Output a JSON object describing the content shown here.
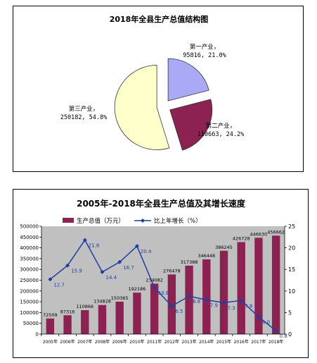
{
  "chart_data": [
    {
      "type": "pie",
      "title": "2018年全县生产总值结构图",
      "slices": [
        {
          "name": "第一产业",
          "value": 95816,
          "percent": "21.0%",
          "color": "#a9a9f5"
        },
        {
          "name": "第二产业",
          "value": 110663,
          "percent": "24.2%",
          "color": "#8b2252"
        },
        {
          "name": "第三产业",
          "value": 250182,
          "percent": "54.8%",
          "color": "#ffffcc"
        }
      ],
      "explode": true
    },
    {
      "type": "bar",
      "title": "2005年-2018年全县生产总值及其增长速度",
      "categories": [
        "2005年",
        "2006年",
        "2007年",
        "2008年",
        "2009年",
        "2010年",
        "2011年",
        "2012年",
        "2013年",
        "2014年",
        "2015年",
        "2016年",
        "2017年",
        "2018年"
      ],
      "series": [
        {
          "name": "生产总值（万元）",
          "kind": "bar",
          "axis": "left",
          "color": "#8b2252",
          "values": [
            72509,
            87316,
            110866,
            134828,
            150365,
            192186,
            234082,
            276478,
            317388,
            346448,
            386245,
            426728,
            446630,
            456662
          ]
        },
        {
          "name": "比上年增长（%）",
          "kind": "line",
          "axis": "right",
          "color": "#1f3f9f",
          "values": [
            12.7,
            15.9,
            21.8,
            14.4,
            16.7,
            20.4,
            10.8,
            6.5,
            8.8,
            7.9,
            7.3,
            7.8,
            4.0,
            0.8
          ],
          "labels": [
            "12.7",
            "15.9",
            "21.8",
            "14.4",
            "16.7",
            "20.4",
            "10.8",
            "6.5",
            "8.8",
            "7.9",
            "7.3",
            "7.8",
            "4.0",
            "0.8"
          ]
        }
      ],
      "ylim": [
        0,
        500000
      ],
      "yticks": [
        "0",
        "50000",
        "100000",
        "150000",
        "200000",
        "250000",
        "300000",
        "350000",
        "400000",
        "450000",
        "500000"
      ],
      "y2lim": [
        0,
        25
      ],
      "y2ticks": [
        "0",
        "5",
        "10",
        "15",
        "20",
        "25"
      ],
      "plot_background": "#c0c0c0",
      "grid": false,
      "legend": "top"
    }
  ]
}
